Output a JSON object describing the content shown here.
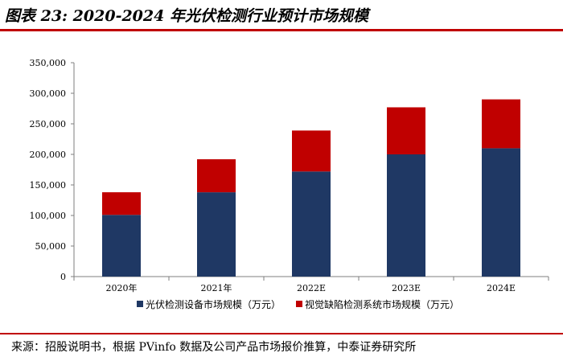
{
  "page": {
    "title": "图表 23: 2020-2024 年光伏检测行业预计市场规模",
    "source": "来源：招股说明书，根据 PVinfo 数据及公司产品市场报价推算，中泰证券研究所",
    "accent_color": "#c00000",
    "text_color": "#000000"
  },
  "chart_data": {
    "type": "bar",
    "stacked": true,
    "title": "图表 23: 2020-2024 年光伏检测行业预计市场规模",
    "xlabel": "",
    "ylabel": "",
    "categories": [
      "2020年",
      "2021年",
      "2022E",
      "2023E",
      "2024E"
    ],
    "series": [
      {
        "name": "光伏检测设备市场规模（万元）",
        "color": "#1f3864",
        "values": [
          101000,
          138000,
          172000,
          200000,
          210000
        ]
      },
      {
        "name": "视觉缺陷检测系统市场规模（万元）",
        "color": "#c00000",
        "values": [
          37000,
          54000,
          67000,
          77000,
          80000
        ]
      }
    ],
    "ylim": [
      0,
      350000
    ],
    "yticks": [
      0,
      50000,
      100000,
      150000,
      200000,
      250000,
      300000,
      350000
    ],
    "ytick_labels": [
      "0",
      "50,000",
      "100,000",
      "150,000",
      "200,000",
      "250,000",
      "300,000",
      "350,000"
    ],
    "grid": false,
    "legend_position": "bottom"
  }
}
